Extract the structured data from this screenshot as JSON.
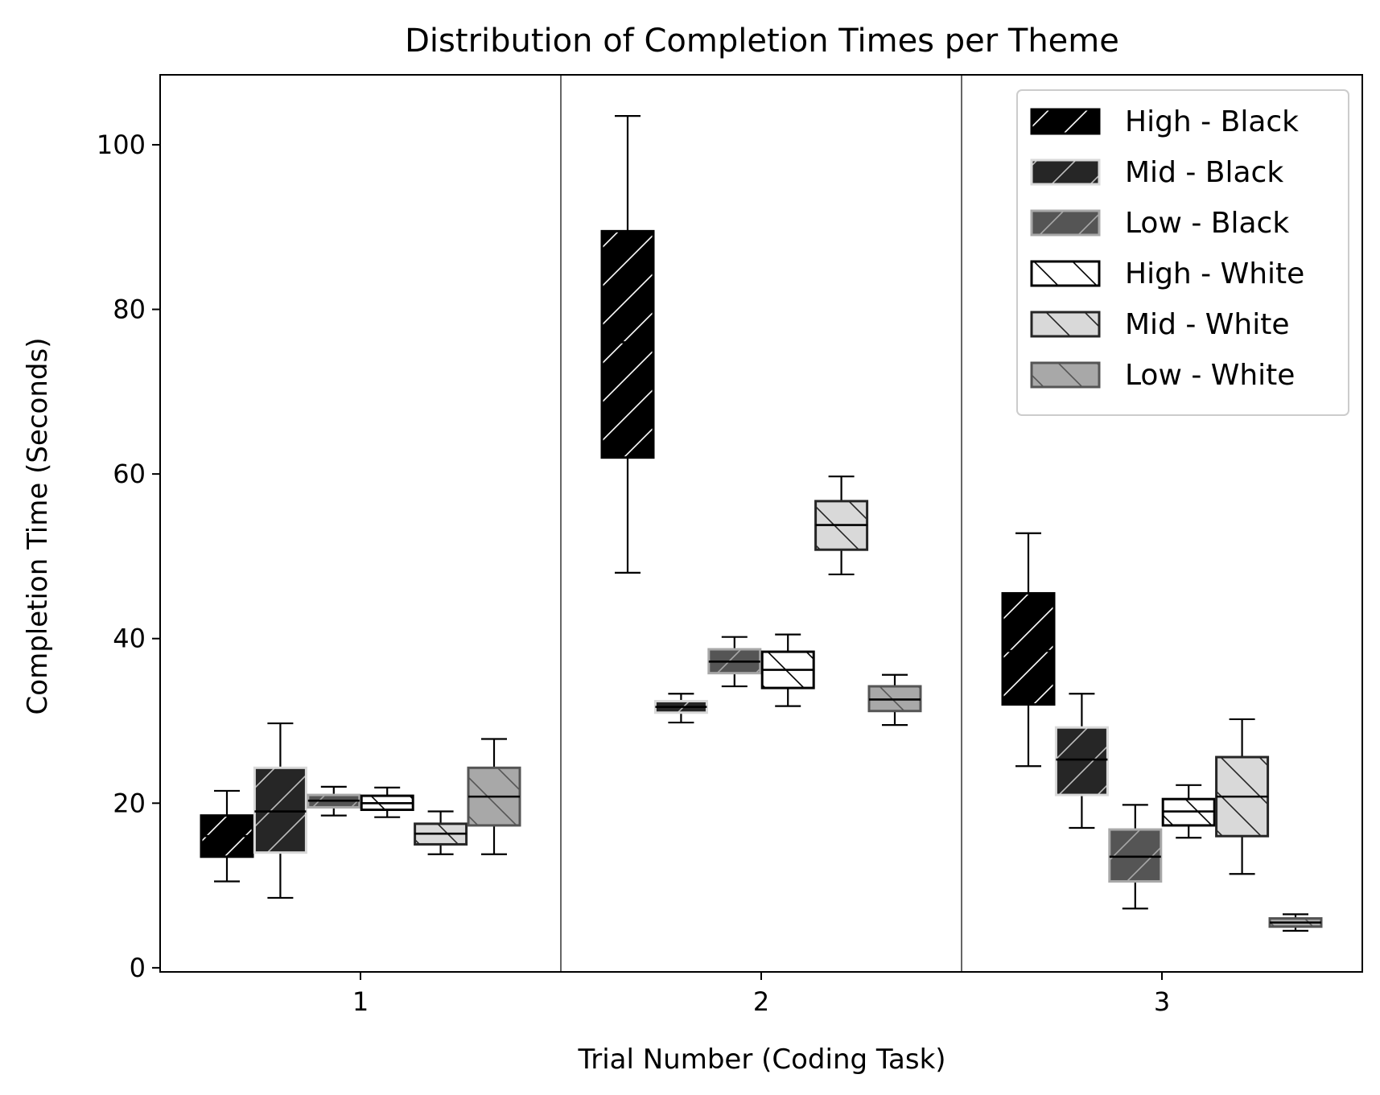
{
  "chart_data": {
    "type": "box",
    "title": "Distribution of Completion Times per Theme",
    "xlabel": "Trial Number (Coding Task)",
    "ylabel": "Completion Time (Seconds)",
    "categories": [
      "1",
      "2",
      "3"
    ],
    "y_ticks": [
      0,
      20,
      40,
      60,
      80,
      100
    ],
    "ylim": [
      -0.5,
      108.5
    ],
    "grid": false,
    "legend_position": "top-right",
    "series": [
      {
        "name": "High - Black",
        "fill": "#000000",
        "edge": "#000000",
        "hatch": "/",
        "hatch_color": "#ffffff",
        "median_color": "#000000",
        "stats": [
          {
            "whislo": 10.5,
            "q1": 13.5,
            "med": 16.0,
            "q3": 18.5,
            "whishi": 21.5
          },
          {
            "whislo": 48.0,
            "q1": 62.0,
            "med": 76.0,
            "q3": 89.5,
            "whishi": 103.5
          },
          {
            "whislo": 24.5,
            "q1": 32.0,
            "med": 38.5,
            "q3": 45.5,
            "whishi": 52.8
          }
        ]
      },
      {
        "name": "Mid - Black",
        "fill": "#262626",
        "edge": "#d9d9d9",
        "hatch": "/",
        "hatch_color": "#bdbdbd",
        "median_color": "#000000",
        "stats": [
          {
            "whislo": 8.5,
            "q1": 14.0,
            "med": 19.0,
            "q3": 24.3,
            "whishi": 29.7
          },
          {
            "whislo": 29.8,
            "q1": 31.0,
            "med": 31.7,
            "q3": 32.4,
            "whishi": 33.3
          },
          {
            "whislo": 17.0,
            "q1": 21.0,
            "med": 25.3,
            "q3": 29.2,
            "whishi": 33.3
          }
        ]
      },
      {
        "name": "Low - Black",
        "fill": "#555555",
        "edge": "#a8a8a8",
        "hatch": "/",
        "hatch_color": "#a8a8a8",
        "median_color": "#000000",
        "stats": [
          {
            "whislo": 18.5,
            "q1": 19.5,
            "med": 20.3,
            "q3": 21.0,
            "whishi": 22.0
          },
          {
            "whislo": 34.2,
            "q1": 35.8,
            "med": 37.2,
            "q3": 38.7,
            "whishi": 40.2
          },
          {
            "whislo": 7.2,
            "q1": 10.5,
            "med": 13.5,
            "q3": 16.8,
            "whishi": 19.8
          }
        ]
      },
      {
        "name": "High - White",
        "fill": "#ffffff",
        "edge": "#000000",
        "hatch": "\\",
        "hatch_color": "#000000",
        "median_color": "#000000",
        "stats": [
          {
            "whislo": 18.3,
            "q1": 19.2,
            "med": 20.0,
            "q3": 20.9,
            "whishi": 21.9
          },
          {
            "whislo": 31.8,
            "q1": 34.0,
            "med": 36.2,
            "q3": 38.4,
            "whishi": 40.5
          },
          {
            "whislo": 15.8,
            "q1": 17.3,
            "med": 19.0,
            "q3": 20.5,
            "whishi": 22.2
          }
        ]
      },
      {
        "name": "Mid - White",
        "fill": "#d9d9d9",
        "edge": "#262626",
        "hatch": "\\",
        "hatch_color": "#262626",
        "median_color": "#000000",
        "stats": [
          {
            "whislo": 13.8,
            "q1": 15.0,
            "med": 16.3,
            "q3": 17.5,
            "whishi": 19.0
          },
          {
            "whislo": 47.8,
            "q1": 50.8,
            "med": 53.8,
            "q3": 56.7,
            "whishi": 59.7
          },
          {
            "whislo": 11.4,
            "q1": 16.0,
            "med": 20.8,
            "q3": 25.6,
            "whishi": 30.2
          }
        ]
      },
      {
        "name": "Low - White",
        "fill": "#a8a8a8",
        "edge": "#555555",
        "hatch": "\\",
        "hatch_color": "#555555",
        "median_color": "#000000",
        "stats": [
          {
            "whislo": 13.8,
            "q1": 17.3,
            "med": 20.8,
            "q3": 24.3,
            "whishi": 27.8
          },
          {
            "whislo": 29.5,
            "q1": 31.2,
            "med": 32.6,
            "q3": 34.2,
            "whishi": 35.6
          },
          {
            "whislo": 4.5,
            "q1": 5.0,
            "med": 5.5,
            "q3": 6.0,
            "whishi": 6.5
          }
        ]
      }
    ]
  }
}
